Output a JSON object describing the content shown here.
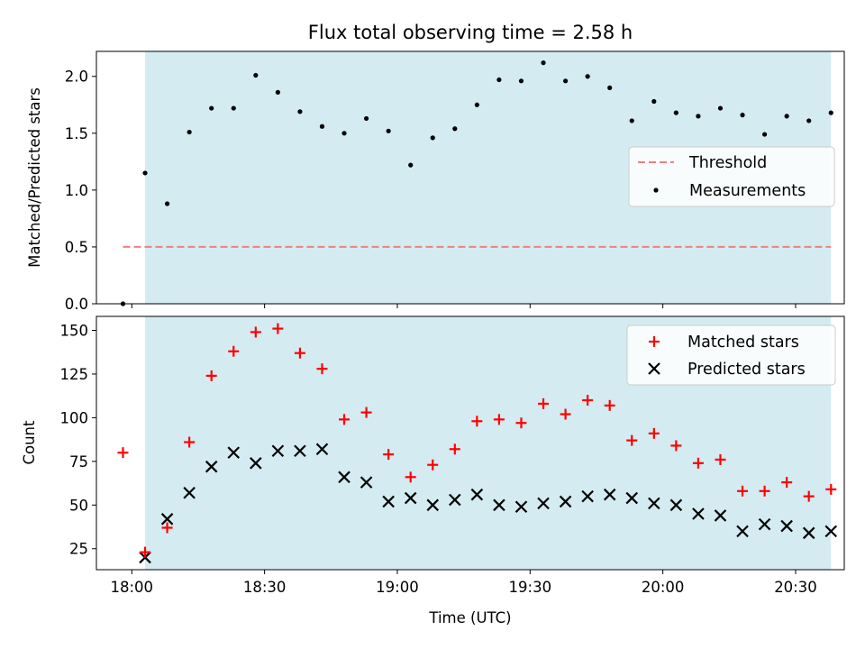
{
  "colors": {
    "shade": "#d4ebf1",
    "threshold": "#f08080",
    "measurements": "#000000",
    "matched": "#ff0000",
    "predicted": "#000000"
  },
  "chart_data": [
    {
      "type": "scatter",
      "title": "Flux total observing time = 2.58 h",
      "xlabel": "",
      "ylabel": "Matched/Predicted stars",
      "xlim": [
        "17:52",
        "20:41"
      ],
      "ylim": [
        0,
        2.22
      ],
      "yticks": [
        "0.0",
        "0.5",
        "1.0",
        "1.5",
        "2.0"
      ],
      "ytick_values": [
        0,
        0.5,
        1.0,
        1.5,
        2.0
      ],
      "grid": false,
      "legend_position": "center-right",
      "shaded_region": [
        "18:03",
        "20:38"
      ],
      "threshold": {
        "name": "Threshold",
        "value": 0.5,
        "x_start": "17:58",
        "x_end": "20:38"
      },
      "series": [
        {
          "name": "Measurements",
          "marker": "dot",
          "x": [
            "17:58",
            "18:03",
            "18:08",
            "18:13",
            "18:18",
            "18:23",
            "18:28",
            "18:33",
            "18:38",
            "18:43",
            "18:48",
            "18:53",
            "18:58",
            "19:03",
            "19:08",
            "19:13",
            "19:18",
            "19:23",
            "19:28",
            "19:33",
            "19:38",
            "19:43",
            "19:48",
            "19:53",
            "19:58",
            "20:03",
            "20:08",
            "20:13",
            "20:18",
            "20:23",
            "20:28",
            "20:33",
            "20:38"
          ],
          "values": [
            0.0,
            1.15,
            0.88,
            1.51,
            1.72,
            1.72,
            2.01,
            1.86,
            1.69,
            1.56,
            1.5,
            1.63,
            1.52,
            1.22,
            1.46,
            1.54,
            1.75,
            1.97,
            1.96,
            2.12,
            1.96,
            2.0,
            1.9,
            1.61,
            1.78,
            1.68,
            1.65,
            1.72,
            1.66,
            1.49,
            1.65,
            1.61,
            1.68
          ]
        }
      ]
    },
    {
      "type": "scatter",
      "title": "",
      "xlabel": "Time (UTC)",
      "ylabel": "Count",
      "xlim": [
        "17:52",
        "20:41"
      ],
      "ylim": [
        13,
        158
      ],
      "xticks": [
        "18:00",
        "18:30",
        "19:00",
        "19:30",
        "20:00",
        "20:30"
      ],
      "yticks": [
        "25",
        "50",
        "75",
        "100",
        "125",
        "150"
      ],
      "ytick_values": [
        25,
        50,
        75,
        100,
        125,
        150
      ],
      "grid": false,
      "legend_position": "top-right",
      "shaded_region": [
        "18:03",
        "20:38"
      ],
      "series": [
        {
          "name": "Matched stars",
          "marker": "plus",
          "x": [
            "17:58",
            "18:03",
            "18:08",
            "18:13",
            "18:18",
            "18:23",
            "18:28",
            "18:33",
            "18:38",
            "18:43",
            "18:48",
            "18:53",
            "18:58",
            "19:03",
            "19:08",
            "19:13",
            "19:18",
            "19:23",
            "19:28",
            "19:33",
            "19:38",
            "19:43",
            "19:48",
            "19:53",
            "19:58",
            "20:03",
            "20:08",
            "20:13",
            "20:18",
            "20:23",
            "20:28",
            "20:33",
            "20:38"
          ],
          "values": [
            80,
            23,
            37,
            86,
            124,
            138,
            149,
            151,
            137,
            128,
            99,
            103,
            79,
            66,
            73,
            82,
            98,
            99,
            97,
            108,
            102,
            110,
            107,
            87,
            91,
            84,
            74,
            76,
            58,
            58,
            63,
            55,
            59
          ]
        },
        {
          "name": "Predicted stars",
          "marker": "x",
          "x": [
            "18:03",
            "18:08",
            "18:13",
            "18:18",
            "18:23",
            "18:28",
            "18:33",
            "18:38",
            "18:43",
            "18:48",
            "18:53",
            "18:58",
            "19:03",
            "19:08",
            "19:13",
            "19:18",
            "19:23",
            "19:28",
            "19:33",
            "19:38",
            "19:43",
            "19:48",
            "19:53",
            "19:58",
            "20:03",
            "20:08",
            "20:13",
            "20:18",
            "20:23",
            "20:28",
            "20:33",
            "20:38"
          ],
          "values": [
            20,
            42,
            57,
            72,
            80,
            74,
            81,
            81,
            82,
            66,
            63,
            52,
            54,
            50,
            53,
            56,
            50,
            49,
            51,
            52,
            55,
            56,
            54,
            51,
            50,
            45,
            44,
            35,
            39,
            38,
            34,
            35
          ]
        }
      ]
    }
  ]
}
